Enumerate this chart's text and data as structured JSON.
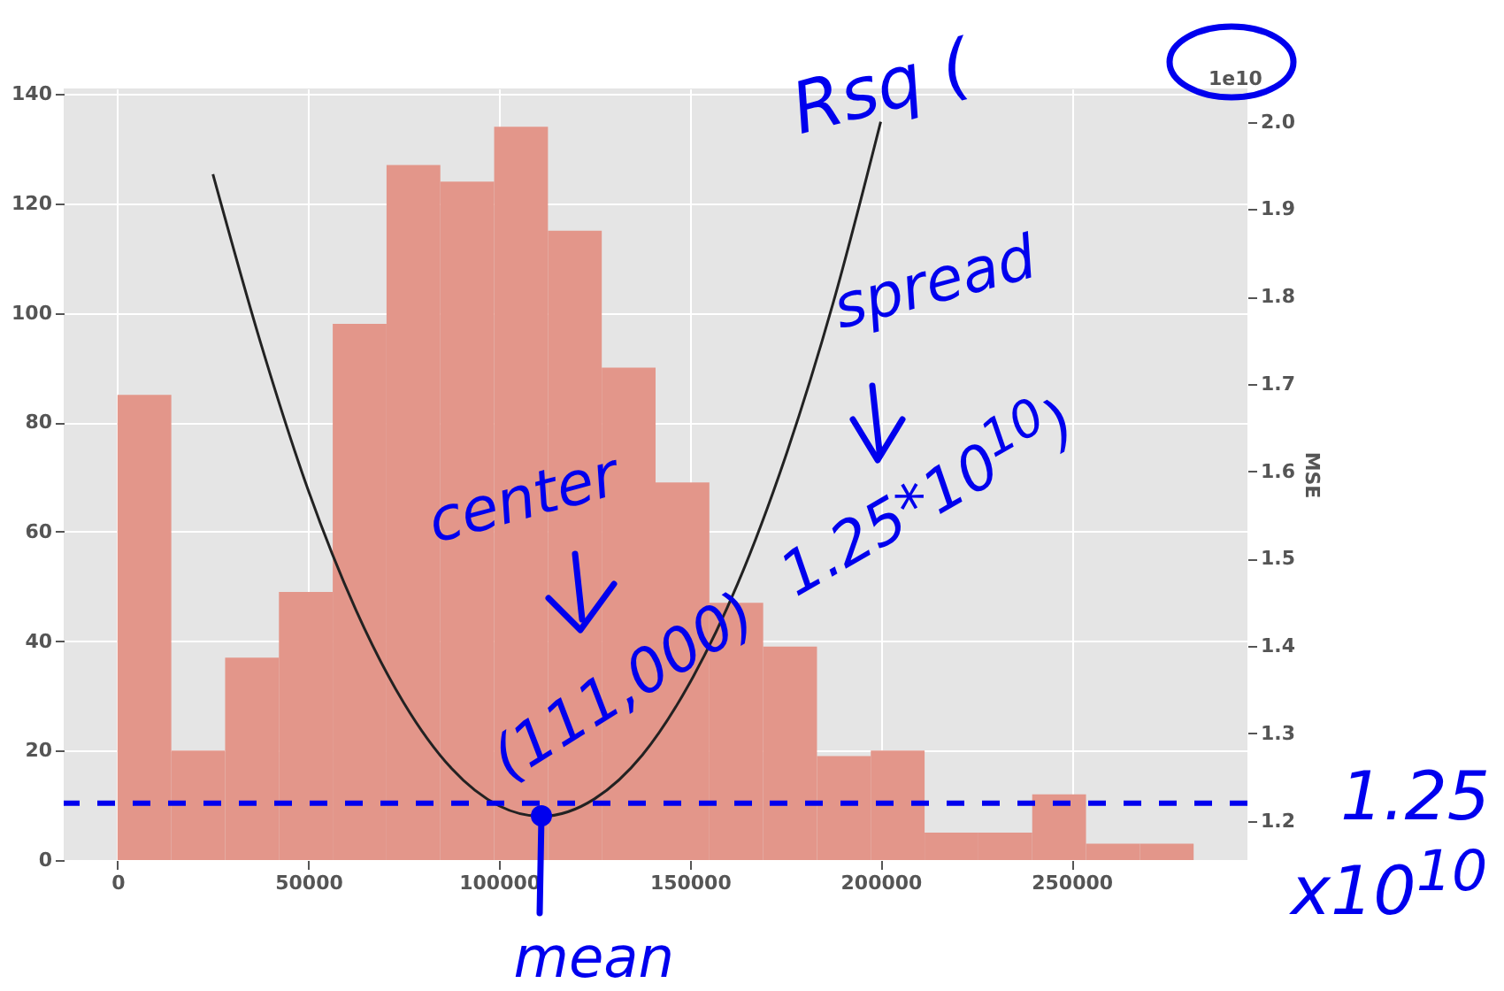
{
  "chart_data": {
    "type": "histogram",
    "ylabel": null,
    "y2label": "MSE",
    "bins": [
      0,
      14100,
      28200,
      42300,
      56400,
      70500,
      84600,
      98700,
      112800,
      126900,
      141000,
      155100,
      169200,
      183300,
      197400,
      211500,
      225600,
      239700,
      253800,
      267900,
      282000
    ],
    "values": [
      85,
      20,
      37,
      49,
      98,
      127,
      124,
      134,
      115,
      90,
      69,
      47,
      39,
      19,
      20,
      5,
      5,
      12,
      3,
      3
    ],
    "color": "#e3968a",
    "series": [
      {
        "type": "line",
        "axis": "y2",
        "color": "#222222",
        "x": [
          25000,
          37500,
          50000,
          62500,
          75000,
          87500,
          100000,
          111000,
          125000,
          137500,
          150000,
          162500,
          175000,
          187500,
          200000
        ],
        "values": [
          1.94,
          1.747,
          1.578,
          1.441,
          1.335,
          1.26,
          1.217,
          1.205,
          1.225,
          1.275,
          1.358,
          1.471,
          1.616,
          1.792,
          2.0
        ]
      }
    ],
    "xlim": [
      -14100,
      296100
    ],
    "xticks": [
      0,
      50000,
      100000,
      150000,
      200000,
      250000
    ],
    "ylim": [
      0,
      141
    ],
    "yticks": [
      0,
      20,
      40,
      60,
      80,
      100,
      120,
      140
    ],
    "y2lim": [
      1.155,
      2.038
    ],
    "y2ticks": [
      {
        "value": 1.2,
        "label": "1.2"
      },
      {
        "value": 1.3,
        "label": "1.3"
      },
      {
        "value": 1.4,
        "label": "1.4"
      },
      {
        "value": 1.5,
        "label": "1.5"
      },
      {
        "value": 1.6,
        "label": "1.6"
      },
      {
        "value": 1.7,
        "label": "1.7"
      },
      {
        "value": 1.8,
        "label": "1.8"
      },
      {
        "value": 1.9,
        "label": "1.9"
      },
      {
        "value": 2,
        "label": "2.0"
      }
    ],
    "ref_lines": [
      {
        "axis": "y2",
        "value": 1.22,
        "color": "#0000ee",
        "line_style": "dashed"
      }
    ],
    "grid": true,
    "annotations": [
      "1e10",
      "Rsq (",
      "center",
      "(111,000)",
      "spread",
      "1.25*10$^{10}$)",
      {
        "text": "mean",
        "x": 111000,
        "y": 1.205
      },
      "1.25",
      "x10$^{10}$"
    ]
  }
}
